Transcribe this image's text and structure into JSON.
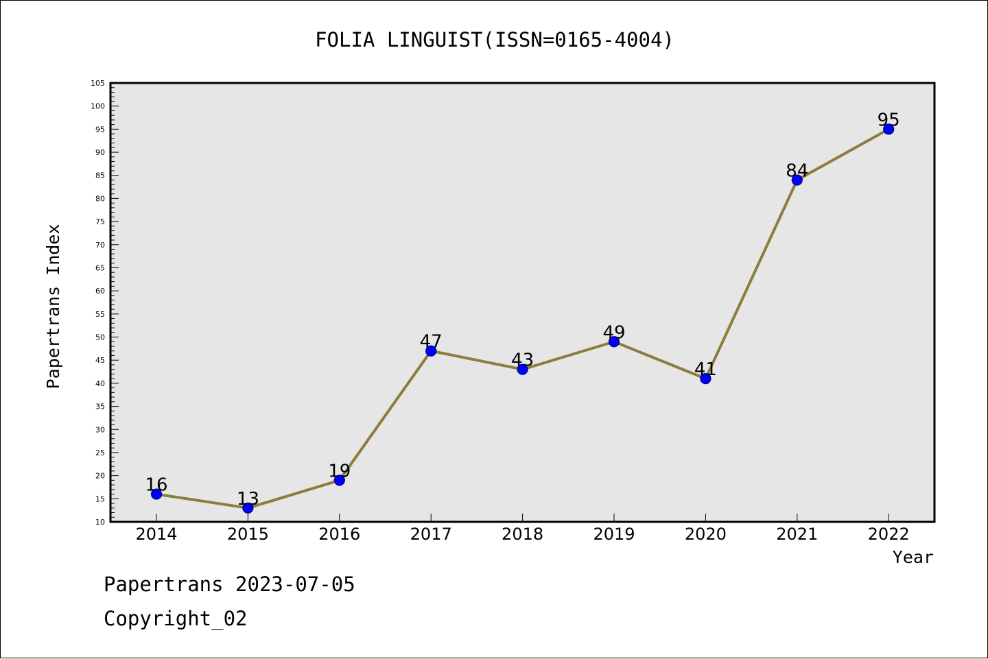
{
  "chart_data": {
    "type": "line",
    "title": "FOLIA LINGUIST(ISSN=0165-4004)",
    "xlabel": "Year",
    "ylabel": "Papertrans Index",
    "categories": [
      "2014",
      "2015",
      "2016",
      "2017",
      "2018",
      "2019",
      "2020",
      "2021",
      "2022"
    ],
    "series": [
      {
        "values": [
          16,
          13,
          19,
          47,
          43,
          49,
          41,
          84,
          95
        ]
      }
    ],
    "ylim": [
      10,
      105
    ],
    "yticks": [
      10,
      15,
      20,
      25,
      30,
      35,
      40,
      45,
      50,
      55,
      60,
      65,
      70,
      75,
      80,
      85,
      90,
      95,
      100,
      105
    ],
    "data_labels": true,
    "grid": false,
    "legend": "none",
    "colors": {
      "plot_background": "#e6e6e6",
      "line": "#8c7d3c",
      "marker": "#0000ff",
      "marker_edge": "#00008b"
    }
  },
  "footer": {
    "date_line": "Papertrans 2023-07-05",
    "copyright_line": "Copyright_02"
  }
}
